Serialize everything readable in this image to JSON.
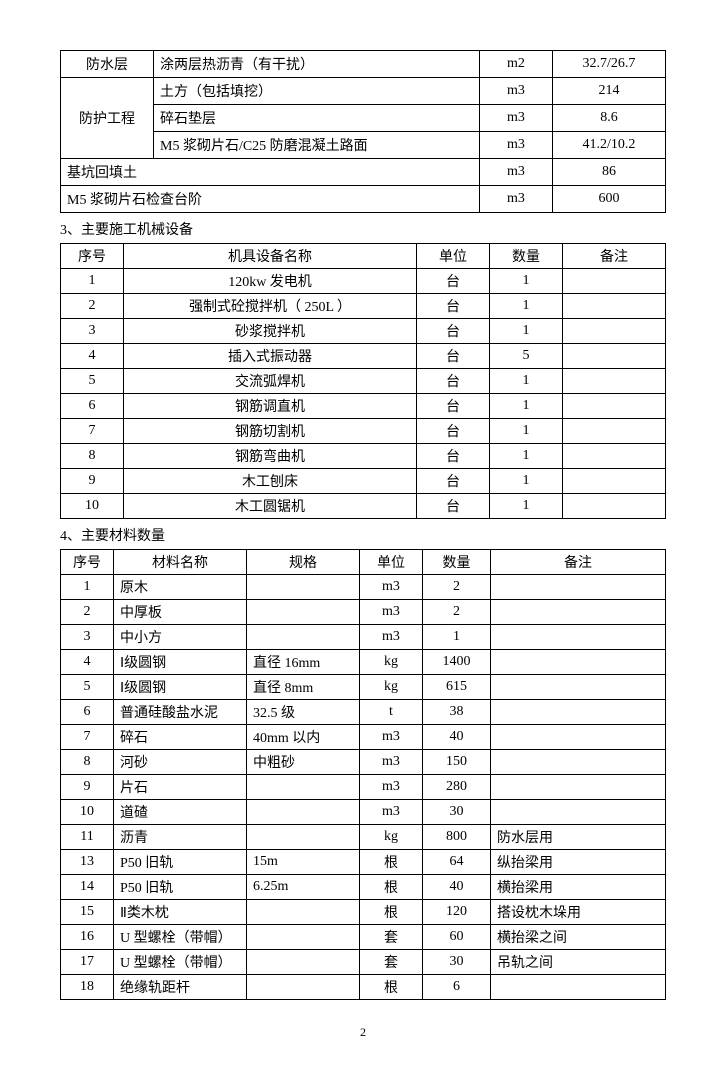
{
  "table1": {
    "rows": [
      {
        "label": "防水层",
        "desc": "涂两层热沥青（有干扰）",
        "unit": "m2",
        "qty": "32.7/26.7",
        "rowspan": 1
      },
      {
        "label": "防护工程",
        "desc": "土方（包括填挖）",
        "unit": "m3",
        "qty": "214",
        "rowspan": 3
      },
      {
        "label": "",
        "desc": "碎石垫层",
        "unit": "m3",
        "qty": "8.6"
      },
      {
        "label": "",
        "desc": "M5 浆砌片石/C25 防磨混凝土路面",
        "unit": "m3",
        "qty": "41.2/10.2"
      },
      {
        "label_colspan": "基坑回填土",
        "unit": "m3",
        "qty": "86"
      },
      {
        "label_colspan": "M5 浆砌片石检查台阶",
        "unit": "m3",
        "qty": "600"
      }
    ]
  },
  "section3": "3、主要施工机械设备",
  "table2": {
    "headers": [
      "序号",
      "机具设备名称",
      "单位",
      "数量",
      "备注"
    ],
    "rows": [
      [
        "1",
        "120kw 发电机",
        "台",
        "1",
        ""
      ],
      [
        "2",
        "强制式砼搅拌机（ 250L ）",
        "台",
        "1",
        ""
      ],
      [
        "3",
        "砂浆搅拌机",
        "台",
        "1",
        ""
      ],
      [
        "4",
        "插入式振动器",
        "台",
        "5",
        ""
      ],
      [
        "5",
        "交流弧焊机",
        "台",
        "1",
        ""
      ],
      [
        "6",
        "钢筋调直机",
        "台",
        "1",
        ""
      ],
      [
        "7",
        "钢筋切割机",
        "台",
        "1",
        ""
      ],
      [
        "8",
        "钢筋弯曲机",
        "台",
        "1",
        ""
      ],
      [
        "9",
        "木工刨床",
        "台",
        "1",
        ""
      ],
      [
        "10",
        "木工圆锯机",
        "台",
        "1",
        ""
      ]
    ]
  },
  "section4": "4、主要材料数量",
  "table3": {
    "headers": [
      "序号",
      "材料名称",
      "规格",
      "单位",
      "数量",
      "备注"
    ],
    "rows": [
      [
        "1",
        "原木",
        "",
        "m3",
        "2",
        ""
      ],
      [
        "2",
        "中厚板",
        "",
        "m3",
        "2",
        ""
      ],
      [
        "3",
        "中小方",
        "",
        "m3",
        "1",
        ""
      ],
      [
        "4",
        "Ⅰ级圆钢",
        "直径 16mm",
        "kg",
        "1400",
        ""
      ],
      [
        "5",
        "Ⅰ级圆钢",
        "直径 8mm",
        "kg",
        "615",
        ""
      ],
      [
        "6",
        "普通硅酸盐水泥",
        "32.5 级",
        "t",
        "38",
        ""
      ],
      [
        "7",
        "碎石",
        "40mm 以内",
        "m3",
        "40",
        ""
      ],
      [
        "8",
        "河砂",
        "中粗砂",
        "m3",
        "150",
        ""
      ],
      [
        "9",
        "片石",
        "",
        "m3",
        "280",
        ""
      ],
      [
        "10",
        "道碴",
        "",
        "m3",
        "30",
        ""
      ],
      [
        "11",
        "沥青",
        "",
        "kg",
        "800",
        "防水层用"
      ],
      [
        "13",
        "P50 旧轨",
        "15m",
        "根",
        "64",
        "纵抬梁用"
      ],
      [
        "14",
        "P50 旧轨",
        "6.25m",
        "根",
        "40",
        "横抬梁用"
      ],
      [
        "15",
        "Ⅱ类木枕",
        "",
        "根",
        "120",
        "搭设枕木垛用"
      ],
      [
        "16",
        "U 型螺栓（带帽）",
        "",
        "套",
        "60",
        "横抬梁之间"
      ],
      [
        "17",
        "U 型螺栓（带帽）",
        "",
        "套",
        "30",
        "吊轨之间"
      ],
      [
        "18",
        "绝缘轨距杆",
        "",
        "根",
        "6",
        ""
      ]
    ]
  },
  "page_number": "2"
}
